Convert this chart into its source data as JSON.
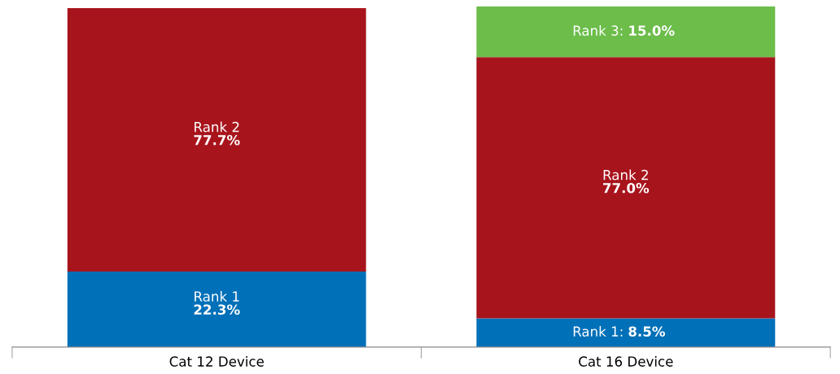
{
  "chart_data": {
    "type": "bar",
    "stacked": true,
    "categories": [
      "Cat 12 Device",
      "Cat 16 Device"
    ],
    "series": [
      {
        "name": "Rank 1",
        "color": "#0070b8",
        "values": [
          22.3,
          8.5
        ],
        "value_labels": [
          "22.3%",
          ": 8.5%"
        ]
      },
      {
        "name": "Rank 2",
        "color": "#a8141c",
        "values": [
          77.7,
          77.0
        ],
        "value_labels": [
          "77.7%",
          "77.0%"
        ]
      },
      {
        "name": "Rank 3",
        "color": "#6cbd4a",
        "values": [
          null,
          15.0
        ],
        "value_labels": [
          null,
          ": 15.0%"
        ]
      }
    ],
    "legend": false,
    "grid": false
  }
}
